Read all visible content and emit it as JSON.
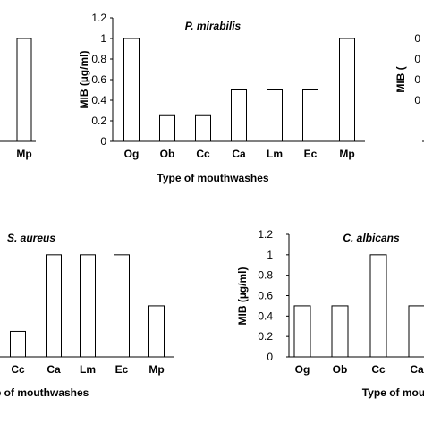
{
  "chart_data": [
    {
      "id": "top-left",
      "type": "bar",
      "title": "",
      "xlabel": "",
      "ylabel": "",
      "categories": [
        "Mp"
      ],
      "values": [
        1
      ],
      "ylim": [
        0,
        1.2
      ],
      "yticks": []
    },
    {
      "id": "top-center",
      "type": "bar",
      "title": "P. mirabilis",
      "xlabel": "Type of mouthwashes",
      "ylabel": "MIB (µg/ml)",
      "categories": [
        "Og",
        "Ob",
        "Cc",
        "Ca",
        "Lm",
        "Ec",
        "Mp"
      ],
      "values": [
        1,
        0.25,
        0.25,
        0.5,
        0.5,
        0.5,
        1
      ],
      "ylim": [
        0,
        1.2
      ],
      "yticks": [
        "0",
        "0.2",
        "0.4",
        "0.6",
        "0.8",
        "1",
        "1.2"
      ]
    },
    {
      "id": "top-right",
      "type": "bar",
      "title": "",
      "xlabel": "",
      "ylabel": "MIB (",
      "categories": [],
      "values": [],
      "ylim": [
        0,
        1.2
      ],
      "yticks": [
        "0",
        "0",
        "0",
        "0"
      ]
    },
    {
      "id": "bottom-left",
      "type": "bar",
      "title": "S. aureus",
      "xlabel": "ype of mouthwashes",
      "ylabel": "",
      "categories": [
        "Cc",
        "Ca",
        "Lm",
        "Ec",
        "Mp"
      ],
      "values": [
        0.25,
        1,
        1,
        1,
        0.5
      ],
      "ylim": [
        0,
        1.2
      ],
      "yticks": []
    },
    {
      "id": "bottom-right",
      "type": "bar",
      "title": "C. albicans",
      "xlabel": "Type of mou",
      "ylabel": "MIB (µg/ml)",
      "categories": [
        "Og",
        "Ob",
        "Cc",
        "Ca"
      ],
      "values": [
        0.5,
        0.5,
        1,
        0.5
      ],
      "ylim": [
        0,
        1.2
      ],
      "yticks": [
        "0",
        "0.2",
        "0.4",
        "0.6",
        "0.8",
        "1",
        "1.2"
      ]
    }
  ]
}
